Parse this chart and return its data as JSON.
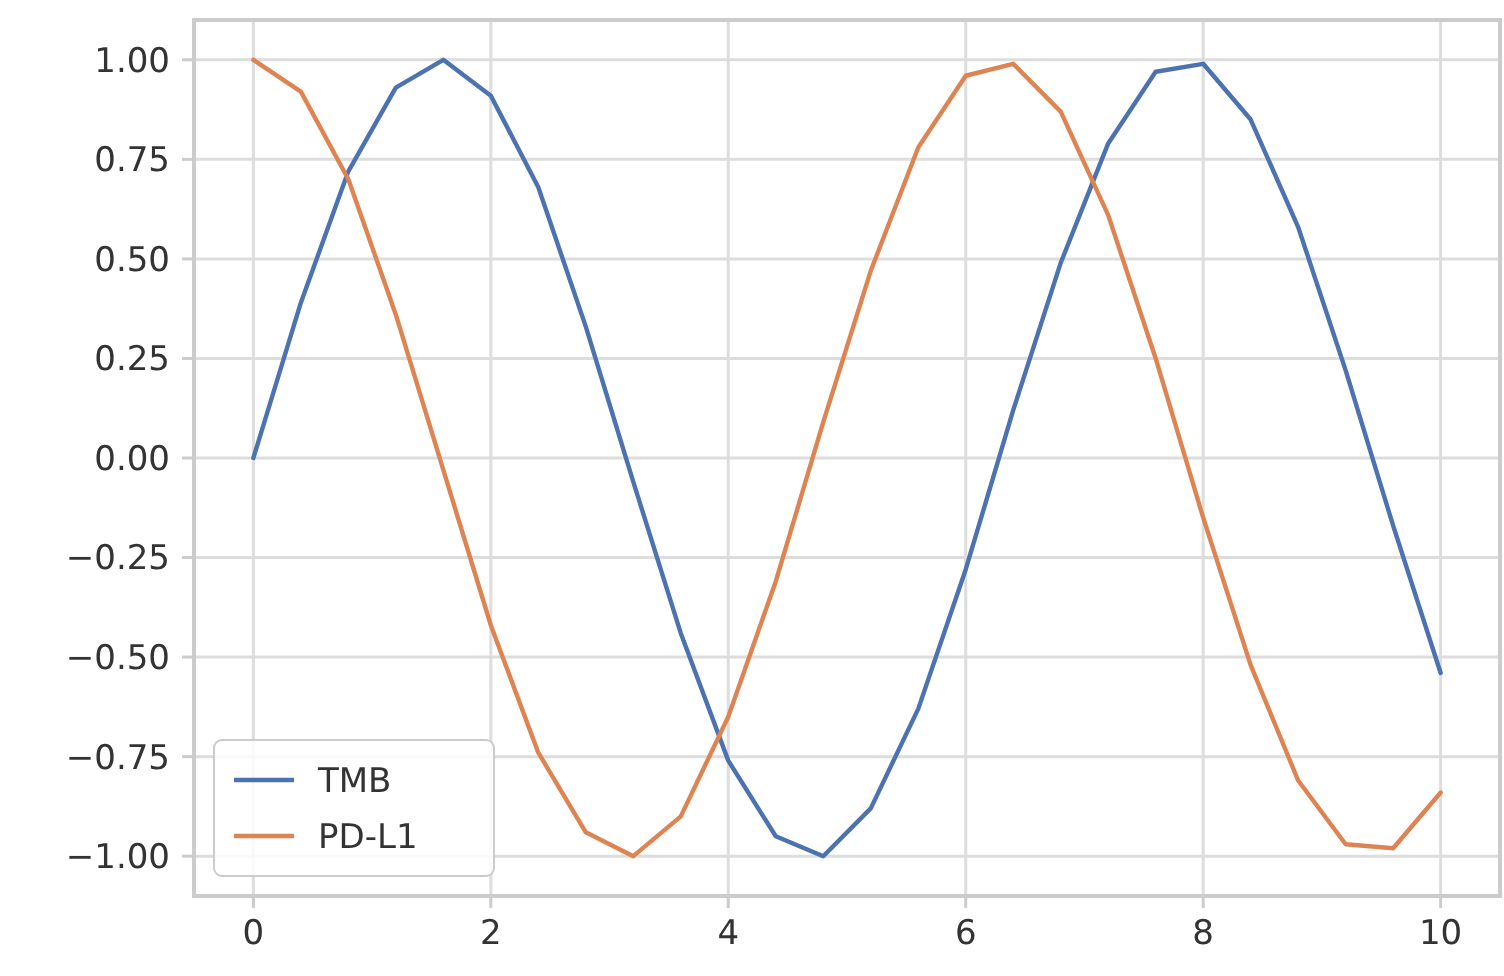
{
  "chart_data": {
    "type": "line",
    "x": [
      0,
      0.4,
      0.8,
      1.2,
      1.6,
      2.0,
      2.4,
      2.8,
      3.2,
      3.6,
      4.0,
      4.4,
      4.8,
      5.2,
      5.6,
      6.0,
      6.4,
      6.8,
      7.2,
      7.6,
      8.0,
      8.4,
      8.8,
      9.2,
      9.6,
      10
    ],
    "series": [
      {
        "name": "TMB",
        "color": "#4c72b0",
        "values": [
          0,
          0.39,
          0.72,
          0.93,
          1.0,
          0.91,
          0.68,
          0.33,
          -0.06,
          -0.44,
          -0.76,
          -0.95,
          -1.0,
          -0.88,
          -0.63,
          -0.28,
          0.12,
          0.49,
          0.79,
          0.97,
          0.99,
          0.85,
          0.58,
          0.22,
          -0.17,
          -0.54
        ]
      },
      {
        "name": "PD-L1",
        "color": "#dd8452",
        "values": [
          1,
          0.92,
          0.7,
          0.36,
          -0.03,
          -0.42,
          -0.74,
          -0.94,
          -1.0,
          -0.9,
          -0.65,
          -0.31,
          0.09,
          0.47,
          0.78,
          0.96,
          0.99,
          0.87,
          0.61,
          0.25,
          -0.15,
          -0.52,
          -0.81,
          -0.97,
          -0.98,
          -0.84
        ]
      }
    ],
    "xlim": [
      -0.5,
      10.5
    ],
    "xticks": [
      0,
      2,
      4,
      6,
      8,
      10
    ],
    "ylim": [
      -1.1,
      1.1
    ],
    "yticks": [
      {
        "value": -1,
        "label": "−1.00"
      },
      {
        "value": -0.75,
        "label": "−0.75"
      },
      {
        "value": -0.5,
        "label": "−0.50"
      },
      {
        "value": -0.25,
        "label": "−0.25"
      },
      {
        "value": 0,
        "label": "0.00"
      },
      {
        "value": 0.25,
        "label": "0.25"
      },
      {
        "value": 0.5,
        "label": "0.50"
      },
      {
        "value": 0.75,
        "label": "0.75"
      },
      {
        "value": 1,
        "label": "1.00"
      }
    ],
    "grid": true,
    "legend": "bottom left",
    "marker": "none",
    "line_style": "solid"
  }
}
